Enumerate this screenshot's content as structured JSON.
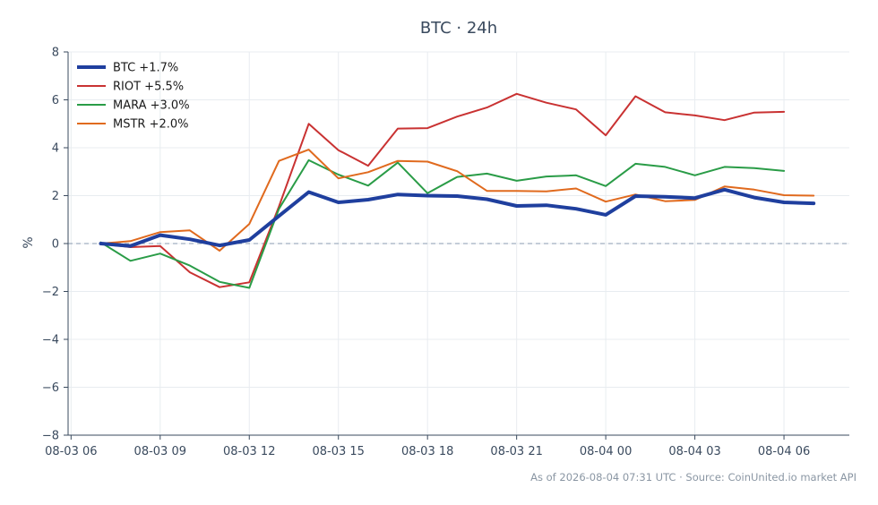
{
  "chart_data": {
    "type": "line",
    "title": "BTC · 24h",
    "ylabel": "%",
    "xlabel": "",
    "ylim": [
      -8,
      8
    ],
    "yticks": [
      -8,
      -6,
      -4,
      -2,
      0,
      2,
      4,
      6,
      8
    ],
    "ytick_labels": [
      "−8",
      "−6",
      "−4",
      "−2",
      "0",
      "2",
      "4",
      "6",
      "8"
    ],
    "xlim": [
      -0.1,
      26.2
    ],
    "xticks": [
      0,
      3,
      6,
      9,
      12,
      15,
      18,
      21,
      24
    ],
    "xtick_labels": [
      "08-03 06",
      "08-03 09",
      "08-03 12",
      "08-03 15",
      "08-03 18",
      "08-03 21",
      "08-04 00",
      "08-04 03",
      "08-04 06"
    ],
    "x": [
      1,
      2,
      3,
      4,
      5,
      6,
      7,
      8,
      9,
      10,
      11,
      12,
      13,
      14,
      15,
      16,
      17,
      18,
      19,
      20,
      21,
      22,
      23,
      24,
      25
    ],
    "zero_line": true,
    "grid": true,
    "legend_position": "top-left",
    "series": [
      {
        "name": "BTC +1.7%",
        "color": "#1f3f9e",
        "width": 4,
        "values": [
          0.0,
          -0.1,
          0.35,
          0.18,
          -0.08,
          0.15,
          1.15,
          2.15,
          1.72,
          1.83,
          2.05,
          2.0,
          1.98,
          1.85,
          1.57,
          1.6,
          1.45,
          1.2,
          1.98,
          1.95,
          1.9,
          2.25,
          1.92,
          1.72,
          1.68
        ]
      },
      {
        "name": "RIOT +5.5%",
        "color": "#c93232",
        "width": 2,
        "values": [
          0.0,
          -0.15,
          -0.1,
          -1.2,
          -1.82,
          -1.62,
          1.55,
          5.0,
          3.9,
          3.25,
          4.8,
          4.82,
          5.3,
          5.68,
          6.25,
          5.88,
          5.6,
          4.52,
          6.15,
          5.48,
          5.35,
          5.15,
          5.47,
          5.5,
          null
        ]
      },
      {
        "name": "MARA +3.0%",
        "color": "#2a9c47",
        "width": 2,
        "values": [
          0.05,
          -0.72,
          -0.42,
          -0.92,
          -1.6,
          -1.85,
          1.45,
          3.48,
          2.88,
          2.42,
          3.38,
          2.1,
          2.78,
          2.92,
          2.62,
          2.8,
          2.85,
          2.4,
          3.33,
          3.2,
          2.85,
          3.2,
          3.15,
          3.03,
          null
        ]
      },
      {
        "name": "MSTR +2.0%",
        "color": "#e06a1e",
        "width": 2,
        "values": [
          0.0,
          0.1,
          0.48,
          0.55,
          -0.3,
          0.82,
          3.45,
          3.92,
          2.72,
          2.98,
          3.45,
          3.42,
          3.02,
          2.2,
          2.2,
          2.18,
          2.3,
          1.75,
          2.05,
          1.77,
          1.82,
          2.38,
          2.25,
          2.02,
          2.0
        ]
      }
    ]
  },
  "footer": {
    "note": "As of 2026-08-04 07:31 UTC · Source: CoinUnited.io market API"
  }
}
